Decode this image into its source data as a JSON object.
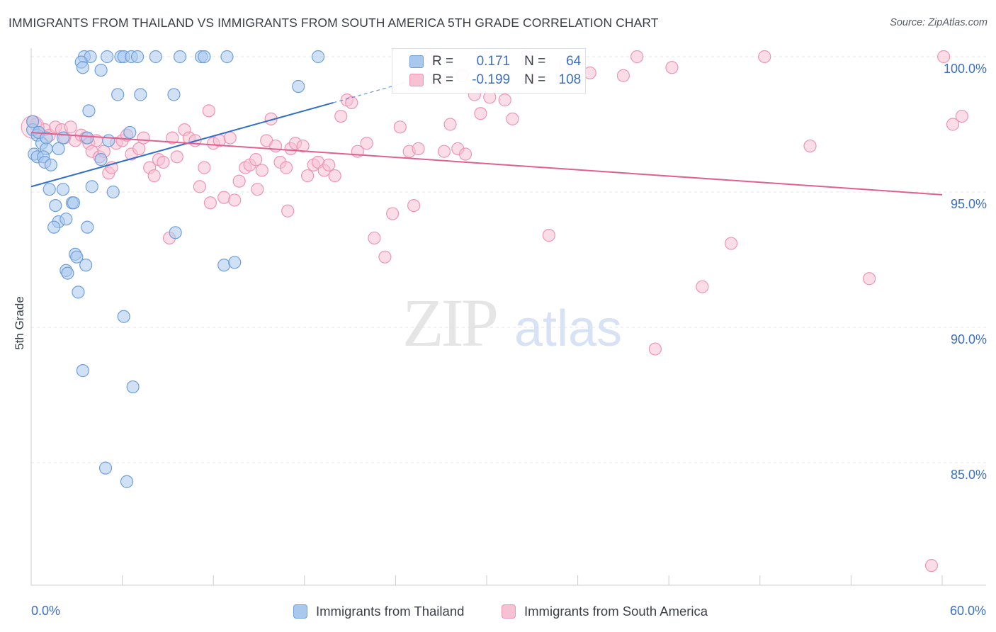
{
  "title": "IMMIGRANTS FROM THAILAND VS IMMIGRANTS FROM SOUTH AMERICA 5TH GRADE CORRELATION CHART",
  "source": "Source: ZipAtlas.com",
  "watermark": {
    "zip": "ZIP",
    "atlas": "atlas"
  },
  "legend": {
    "rows": [
      {
        "r_label": "R =",
        "r_value": "0.171",
        "n_label": "N =",
        "n_value": "64"
      },
      {
        "r_label": "R =",
        "r_value": "-0.199",
        "n_label": "N =",
        "n_value": "108"
      }
    ]
  },
  "colors": {
    "blue_fill": "#a9c8ee",
    "blue_stroke": "#6f9fd8",
    "blue_line": "#2f6fc9",
    "pink_fill": "#f6c1d3",
    "pink_stroke": "#ee94b4",
    "pink_line": "#e0608f",
    "tick_text": "#3b6fc4",
    "grid": "#e3e6ea"
  },
  "chart_data": {
    "type": "scatter",
    "title": "IMMIGRANTS FROM THAILAND VS IMMIGRANTS FROM SOUTH AMERICA 5TH GRADE CORRELATION CHART",
    "xlabel": "",
    "ylabel": "5th Grade",
    "xlim": [
      0,
      60
    ],
    "ylim": [
      80.5,
      100.6
    ],
    "x_tick_labels": [
      "0.0%",
      "60.0%"
    ],
    "y_ticks": [
      85,
      90,
      95,
      100
    ],
    "y_tick_labels": [
      "85.0%",
      "90.0%",
      "95.0%",
      "100.0%"
    ],
    "grid": true,
    "legend_position": "bottom",
    "series": [
      {
        "name": "Immigrants from Thailand",
        "color": "#a9c8ee",
        "trend": {
          "x0": 0,
          "y0": 95.2,
          "x1": 19.9,
          "y1": 98.3,
          "dashed_to_x": 24.7,
          "dashed_to_y": 99.05
        },
        "points": [
          [
            3.5,
            100
          ],
          [
            3.9,
            100
          ],
          [
            5.0,
            100
          ],
          [
            5.9,
            100
          ],
          [
            6.1,
            100
          ],
          [
            6.6,
            100
          ],
          [
            7.0,
            100
          ],
          [
            8.2,
            100
          ],
          [
            9.8,
            100
          ],
          [
            11.2,
            100
          ],
          [
            11.4,
            100
          ],
          [
            12.9,
            100
          ],
          [
            18.9,
            100
          ],
          [
            3.3,
            99.8
          ],
          [
            3.4,
            99.6
          ],
          [
            4.6,
            99.5
          ],
          [
            17.6,
            98.9
          ],
          [
            5.7,
            98.6
          ],
          [
            7.2,
            98.6
          ],
          [
            9.4,
            98.6
          ],
          [
            3.8,
            98.0
          ],
          [
            0.1,
            97.3
          ],
          [
            0.4,
            97.1
          ],
          [
            6.5,
            97.2
          ],
          [
            2.1,
            97.0
          ],
          [
            3.7,
            97.0
          ],
          [
            0.7,
            96.8
          ],
          [
            5.1,
            96.9
          ],
          [
            1.0,
            96.6
          ],
          [
            1.8,
            96.6
          ],
          [
            0.2,
            96.4
          ],
          [
            0.4,
            96.3
          ],
          [
            0.8,
            96.3
          ],
          [
            4.6,
            96.2
          ],
          [
            0.9,
            96.1
          ],
          [
            1.3,
            96.0
          ],
          [
            1.2,
            95.1
          ],
          [
            2.1,
            95.1
          ],
          [
            4.0,
            95.2
          ],
          [
            5.4,
            95.0
          ],
          [
            1.6,
            94.5
          ],
          [
            2.7,
            94.6
          ],
          [
            2.8,
            94.6
          ],
          [
            1.8,
            93.9
          ],
          [
            2.3,
            94.0
          ],
          [
            1.5,
            93.7
          ],
          [
            3.7,
            93.7
          ],
          [
            9.5,
            93.5
          ],
          [
            2.9,
            92.7
          ],
          [
            3.0,
            92.6
          ],
          [
            3.6,
            92.3
          ],
          [
            2.3,
            92.1
          ],
          [
            2.4,
            92.0
          ],
          [
            12.7,
            92.3
          ],
          [
            13.4,
            92.4
          ],
          [
            3.1,
            91.3
          ],
          [
            6.1,
            90.4
          ],
          [
            3.4,
            88.4
          ],
          [
            6.7,
            87.8
          ],
          [
            4.9,
            84.8
          ],
          [
            6.3,
            84.3
          ],
          [
            0.1,
            97.6
          ],
          [
            0.5,
            97.2
          ],
          [
            1.0,
            97.0
          ]
        ]
      },
      {
        "name": "Immigrants from South America",
        "color": "#f6c1d3",
        "trend": {
          "x0": 0,
          "y0": 97.2,
          "x1": 60,
          "y1": 94.9
        },
        "points": [
          [
            0.1,
            97.6
          ],
          [
            0.3,
            97.5
          ],
          [
            0.5,
            97.2
          ],
          [
            0.9,
            97.3
          ],
          [
            1.2,
            97.1
          ],
          [
            1.6,
            97.4
          ],
          [
            2.0,
            97.3
          ],
          [
            2.2,
            97.0
          ],
          [
            2.6,
            97.4
          ],
          [
            2.9,
            96.9
          ],
          [
            3.3,
            97.1
          ],
          [
            3.6,
            97.0
          ],
          [
            3.8,
            96.8
          ],
          [
            4.0,
            96.5
          ],
          [
            4.3,
            96.9
          ],
          [
            4.5,
            96.3
          ],
          [
            4.8,
            96.5
          ],
          [
            5.1,
            95.7
          ],
          [
            5.3,
            95.9
          ],
          [
            5.6,
            96.8
          ],
          [
            6.0,
            96.9
          ],
          [
            6.3,
            97.1
          ],
          [
            6.6,
            96.4
          ],
          [
            7.1,
            96.6
          ],
          [
            7.4,
            97.0
          ],
          [
            7.8,
            95.9
          ],
          [
            8.1,
            95.6
          ],
          [
            8.4,
            96.2
          ],
          [
            8.7,
            96.1
          ],
          [
            9.1,
            93.3
          ],
          [
            9.3,
            97.0
          ],
          [
            9.6,
            96.3
          ],
          [
            10.1,
            97.3
          ],
          [
            10.4,
            97.0
          ],
          [
            10.8,
            96.9
          ],
          [
            11.1,
            95.2
          ],
          [
            11.4,
            95.9
          ],
          [
            11.7,
            98.0
          ],
          [
            12.0,
            96.8
          ],
          [
            12.4,
            96.9
          ],
          [
            12.7,
            94.8
          ],
          [
            13.1,
            97.0
          ],
          [
            13.4,
            94.7
          ],
          [
            13.7,
            95.4
          ],
          [
            14.1,
            95.9
          ],
          [
            14.4,
            96.0
          ],
          [
            14.8,
            96.2
          ],
          [
            15.2,
            95.8
          ],
          [
            15.5,
            96.9
          ],
          [
            15.8,
            97.7
          ],
          [
            16.1,
            96.7
          ],
          [
            16.4,
            96.1
          ],
          [
            16.8,
            95.9
          ],
          [
            17.1,
            96.6
          ],
          [
            17.4,
            96.8
          ],
          [
            17.9,
            96.7
          ],
          [
            18.2,
            95.6
          ],
          [
            18.6,
            96.0
          ],
          [
            18.9,
            96.1
          ],
          [
            19.3,
            95.8
          ],
          [
            19.6,
            96.0
          ],
          [
            20.0,
            95.6
          ],
          [
            20.4,
            97.8
          ],
          [
            20.8,
            98.4
          ],
          [
            21.1,
            98.3
          ],
          [
            21.5,
            96.5
          ],
          [
            22.1,
            96.8
          ],
          [
            22.6,
            93.3
          ],
          [
            23.3,
            92.6
          ],
          [
            23.8,
            94.2
          ],
          [
            24.3,
            97.4
          ],
          [
            24.9,
            96.5
          ],
          [
            25.2,
            94.5
          ],
          [
            25.5,
            96.6
          ],
          [
            26.3,
            100
          ],
          [
            26.7,
            99.1
          ],
          [
            27.2,
            96.5
          ],
          [
            27.6,
            97.5
          ],
          [
            28.1,
            96.6
          ],
          [
            28.4,
            99.3
          ],
          [
            29.2,
            98.6
          ],
          [
            29.6,
            97.9
          ],
          [
            30.2,
            98.5
          ],
          [
            30.5,
            99.0
          ],
          [
            31.2,
            98.4
          ],
          [
            31.7,
            97.7
          ],
          [
            32.6,
            100
          ],
          [
            33.1,
            99.2
          ],
          [
            34.1,
            93.4
          ],
          [
            35.2,
            99.7
          ],
          [
            36.8,
            99.4
          ],
          [
            39.0,
            99.3
          ],
          [
            39.9,
            100
          ],
          [
            41.1,
            89.2
          ],
          [
            42.2,
            99.6
          ],
          [
            44.2,
            91.5
          ],
          [
            46.1,
            93.1
          ],
          [
            48.3,
            100
          ],
          [
            51.3,
            96.7
          ],
          [
            55.2,
            91.8
          ],
          [
            60.1,
            100
          ],
          [
            60.7,
            97.5
          ],
          [
            61.3,
            97.8
          ],
          [
            59.3,
            81.2
          ],
          [
            28.6,
            96.4
          ],
          [
            16.9,
            94.3
          ],
          [
            11.8,
            94.6
          ],
          [
            14.9,
            95.1
          ]
        ]
      }
    ]
  }
}
